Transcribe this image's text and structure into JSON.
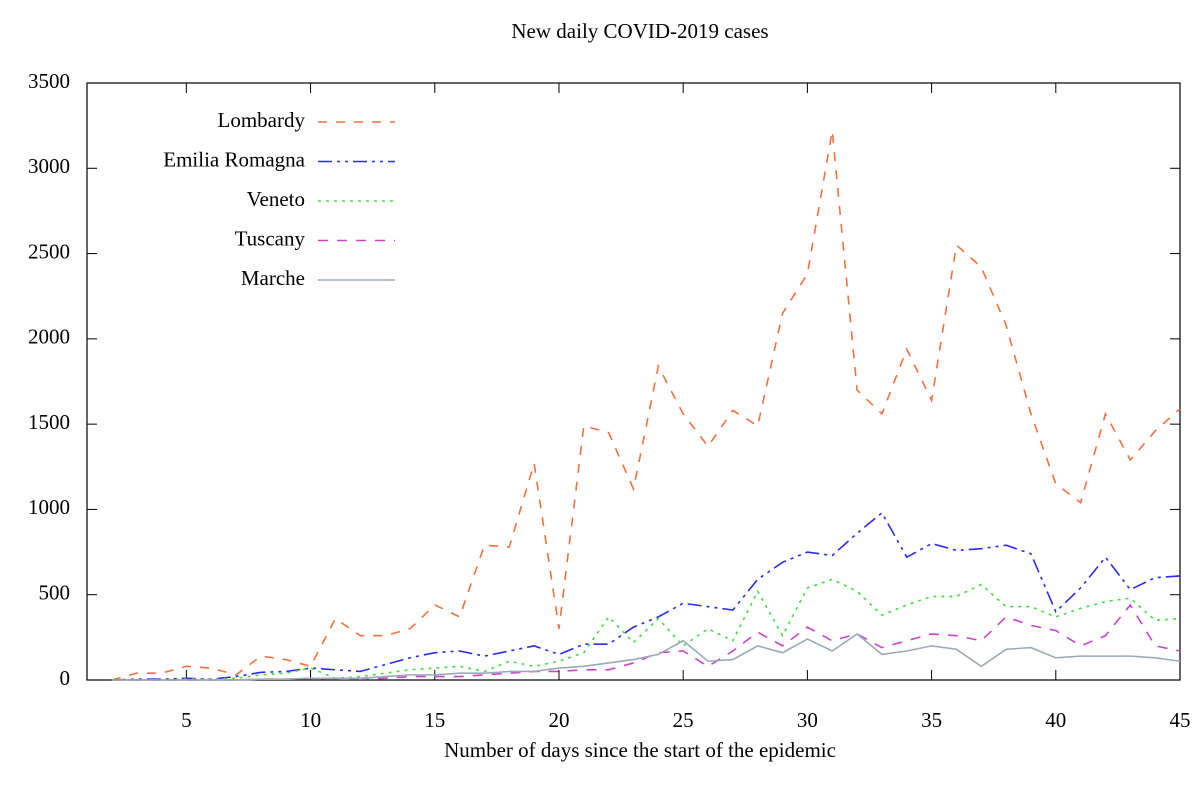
{
  "chart_data": {
    "type": "line",
    "title": "New daily COVID-2019 cases",
    "x_label": "Number of days since the start of the epidemic",
    "x": [
      2,
      3,
      4,
      5,
      6,
      7,
      8,
      9,
      10,
      11,
      12,
      13,
      14,
      15,
      16,
      17,
      18,
      19,
      20,
      21,
      22,
      23,
      24,
      25,
      26,
      27,
      28,
      29,
      30,
      31,
      32,
      33,
      34,
      35,
      36,
      37,
      38,
      39,
      40,
      41,
      42,
      43,
      44,
      45
    ],
    "series": [
      {
        "name": "Lombardy",
        "color": "#f4703e",
        "values": [
          0,
          40,
          40,
          80,
          70,
          30,
          140,
          120,
          80,
          360,
          260,
          260,
          300,
          440,
          370,
          790,
          780,
          1270,
          300,
          1490,
          1450,
          1120,
          1840,
          1560,
          1370,
          1580,
          1490,
          2150,
          2380,
          3220,
          1700,
          1560,
          1940,
          1640,
          2550,
          2420,
          2080,
          1560,
          1150,
          1040,
          1560,
          1290,
          1460,
          1590
        ]
      },
      {
        "name": "Emilia Romagna",
        "color": "#2a2af0",
        "values": [
          0,
          5,
          5,
          10,
          5,
          20,
          45,
          50,
          70,
          60,
          50,
          90,
          130,
          160,
          170,
          140,
          170,
          200,
          150,
          210,
          210,
          310,
          370,
          450,
          430,
          410,
          590,
          690,
          750,
          730,
          860,
          980,
          720,
          800,
          760,
          770,
          790,
          740,
          400,
          540,
          720,
          530,
          600,
          610
        ]
      },
      {
        "name": "Veneto",
        "color": "#44dd44",
        "values": [
          0,
          0,
          0,
          5,
          5,
          10,
          30,
          40,
          70,
          10,
          20,
          40,
          60,
          70,
          80,
          50,
          110,
          80,
          110,
          160,
          370,
          220,
          360,
          200,
          300,
          230,
          520,
          260,
          540,
          590,
          520,
          380,
          440,
          490,
          490,
          560,
          430,
          430,
          370,
          420,
          460,
          480,
          350,
          360
        ]
      },
      {
        "name": "Tuscany",
        "color": "#cc44cc",
        "values": [
          0,
          0,
          0,
          0,
          0,
          0,
          5,
          5,
          10,
          5,
          5,
          10,
          20,
          20,
          20,
          30,
          40,
          50,
          50,
          60,
          60,
          100,
          160,
          170,
          80,
          170,
          280,
          200,
          310,
          230,
          270,
          190,
          230,
          270,
          260,
          230,
          370,
          320,
          290,
          200,
          260,
          440,
          200,
          170
        ]
      },
      {
        "name": "Marche",
        "color": "#9aaab8",
        "values": [
          0,
          0,
          0,
          0,
          0,
          0,
          5,
          5,
          10,
          10,
          10,
          20,
          30,
          30,
          40,
          40,
          50,
          50,
          70,
          80,
          100,
          120,
          150,
          230,
          110,
          120,
          200,
          160,
          240,
          170,
          270,
          150,
          170,
          200,
          180,
          80,
          180,
          190,
          130,
          140,
          140,
          140,
          130,
          110
        ]
      }
    ],
    "xlim": [
      1,
      45
    ],
    "xticks": [
      5,
      10,
      15,
      20,
      25,
      30,
      35,
      40,
      45
    ],
    "ylim": [
      0,
      3500
    ],
    "yticks": [
      0,
      500,
      1000,
      1500,
      2000,
      2500,
      3000,
      3500
    ],
    "legend": "top-left"
  }
}
